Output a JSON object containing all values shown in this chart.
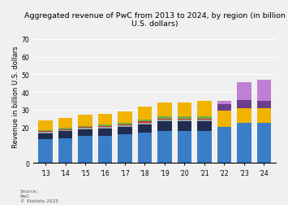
{
  "title": "Aggregated revenue of PwC from 2013 to 2024, by region (in billion U.S. dollars)",
  "ylabel": "Revenue in billion U.S. dollars",
  "source": "Source:\nPwC\n© Statista 2025",
  "years": [
    "'13",
    "'14",
    "'15",
    "'16",
    "'17",
    "'18",
    "'19",
    "'20",
    "'21",
    "'22",
    "'23",
    "'24"
  ],
  "ylim": [
    0,
    75
  ],
  "yticks": [
    0,
    20,
    30,
    40,
    50,
    60,
    70
  ],
  "data": {
    "blue": [
      13.5,
      14.0,
      15.0,
      15.3,
      16.0,
      17.0,
      17.9,
      17.8,
      18.0,
      20.5,
      22.5,
      22.5
    ],
    "navy": [
      3.2,
      3.8,
      3.8,
      4.0,
      4.2,
      4.8,
      5.5,
      5.5,
      5.5,
      0.0,
      0.0,
      0.0
    ],
    "gray": [
      0.7,
      0.7,
      0.8,
      0.9,
      0.9,
      0.9,
      1.0,
      1.0,
      1.0,
      0.0,
      0.0,
      0.0
    ],
    "red": [
      0.5,
      0.5,
      0.6,
      0.6,
      0.6,
      0.7,
      0.7,
      0.7,
      0.5,
      0.0,
      0.0,
      0.0
    ],
    "green": [
      0.5,
      0.6,
      0.7,
      0.8,
      0.8,
      0.9,
      1.1,
      1.1,
      1.2,
      0.0,
      0.0,
      0.0
    ],
    "yellow": [
      5.6,
      5.8,
      6.2,
      5.9,
      6.4,
      7.3,
      7.8,
      7.9,
      8.8,
      9.0,
      8.5,
      8.5
    ],
    "darkpurple": [
      0.0,
      0.0,
      0.0,
      0.0,
      0.0,
      0.0,
      0.0,
      0.0,
      0.0,
      3.5,
      4.5,
      4.0
    ],
    "lightpurple": [
      0.0,
      0.0,
      0.0,
      0.0,
      0.0,
      0.0,
      0.0,
      0.0,
      0.0,
      2.0,
      10.0,
      12.0
    ]
  },
  "bar_colors": {
    "blue": "#3a7ec8",
    "navy": "#1e2d50",
    "gray": "#a0a0a0",
    "red": "#c0392b",
    "green": "#70ad47",
    "yellow": "#f0b400",
    "darkpurple": "#6b3f8c",
    "lightpurple": "#c07fd4"
  },
  "background_color": "#f0f0f0",
  "plot_bg": "#f0f0f0",
  "title_fontsize": 6.8,
  "axis_fontsize": 6.0,
  "tick_fontsize": 5.5
}
